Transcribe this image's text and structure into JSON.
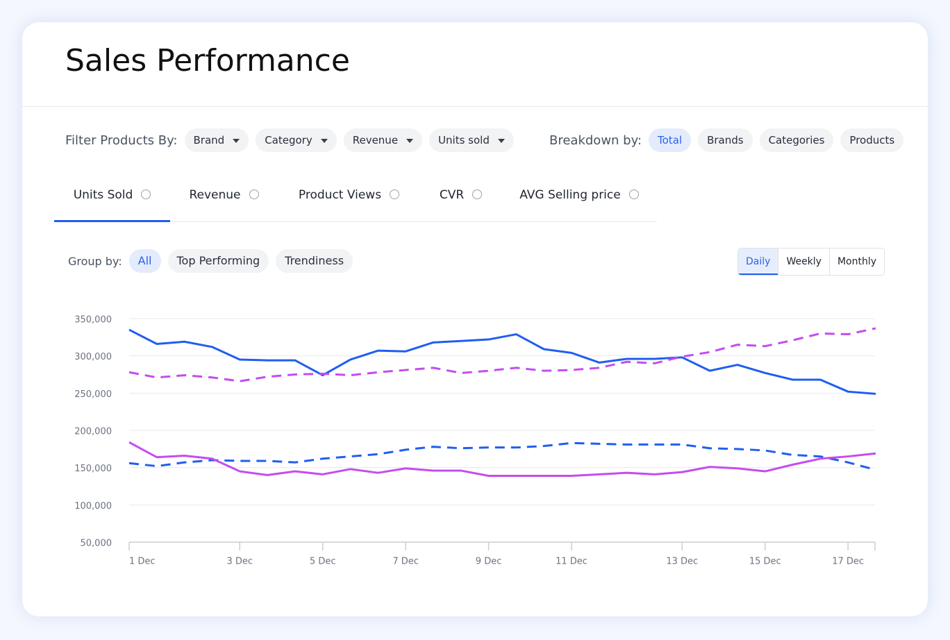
{
  "header": {
    "title": "Sales Performance"
  },
  "filters": {
    "label": "Filter Products By:",
    "options": [
      "Brand",
      "Category",
      "Revenue",
      "Units sold"
    ]
  },
  "breakdown": {
    "label": "Breakdown by:",
    "options": [
      "Total",
      "Brands",
      "Categories",
      "Products"
    ]
  },
  "tabs": [
    "Units Sold",
    "Revenue",
    "Product Views",
    "CVR",
    "AVG Selling price"
  ],
  "group_by": {
    "label": "Group by:",
    "options": [
      "All",
      "Top Performing",
      "Trendiness"
    ]
  },
  "periods": [
    "Daily",
    "Weekly",
    "Monthly"
  ],
  "chart_data": {
    "type": "line",
    "categories": [
      "1 Dec",
      null,
      null,
      null,
      "3 Dec",
      null,
      null,
      "5 Dec",
      null,
      null,
      "7 Dec",
      null,
      null,
      "9 Dec",
      null,
      null,
      "11 Dec",
      null,
      null,
      null,
      "13 Dec",
      null,
      null,
      "15 Dec",
      null,
      null,
      "17 Dec",
      null
    ],
    "ylim": [
      50000,
      350000
    ],
    "yticks": [
      {
        "value": 50000,
        "label": "50,000"
      },
      {
        "value": 100000,
        "label": "100,000"
      },
      {
        "value": 150000,
        "label": "150,000"
      },
      {
        "value": 200000,
        "label": "200,000"
      },
      {
        "value": 250000,
        "label": "250,000"
      },
      {
        "value": 300000,
        "label": "300,000"
      },
      {
        "value": 350000,
        "label": "350,000"
      }
    ],
    "grid": true,
    "series": [
      {
        "color": "#1f5ef0",
        "dashed": false,
        "values": [
          335000,
          316000,
          319000,
          312000,
          295000,
          294000,
          294000,
          274000,
          295000,
          307000,
          306000,
          318000,
          320000,
          322000,
          329000,
          309000,
          304000,
          291000,
          296000,
          296000,
          298000,
          280000,
          288000,
          277000,
          268000,
          268000,
          252000,
          249000
        ]
      },
      {
        "color": "#c44cf0",
        "dashed": true,
        "values": [
          278000,
          271000,
          274000,
          271000,
          266000,
          272000,
          275000,
          276000,
          274000,
          278000,
          281000,
          284000,
          277000,
          280000,
          284000,
          280000,
          281000,
          284000,
          292000,
          290000,
          299000,
          305000,
          315000,
          313000,
          321000,
          330000,
          329000,
          337000
        ]
      },
      {
        "color": "#1f5ef0",
        "dashed": true,
        "values": [
          156000,
          152000,
          157000,
          160000,
          159000,
          159000,
          157000,
          162000,
          165000,
          168000,
          174000,
          178000,
          176000,
          177000,
          177000,
          179000,
          183000,
          182000,
          181000,
          181000,
          181000,
          176000,
          175000,
          173000,
          167000,
          165000,
          157000,
          147000
        ]
      },
      {
        "color": "#c44cf0",
        "dashed": false,
        "values": [
          184000,
          164000,
          166000,
          162000,
          145000,
          140000,
          145000,
          141000,
          148000,
          143000,
          149000,
          146000,
          146000,
          139000,
          139000,
          139000,
          139000,
          141000,
          143000,
          141000,
          144000,
          151000,
          149000,
          145000,
          154000,
          162000,
          165000,
          169000
        ]
      }
    ]
  }
}
